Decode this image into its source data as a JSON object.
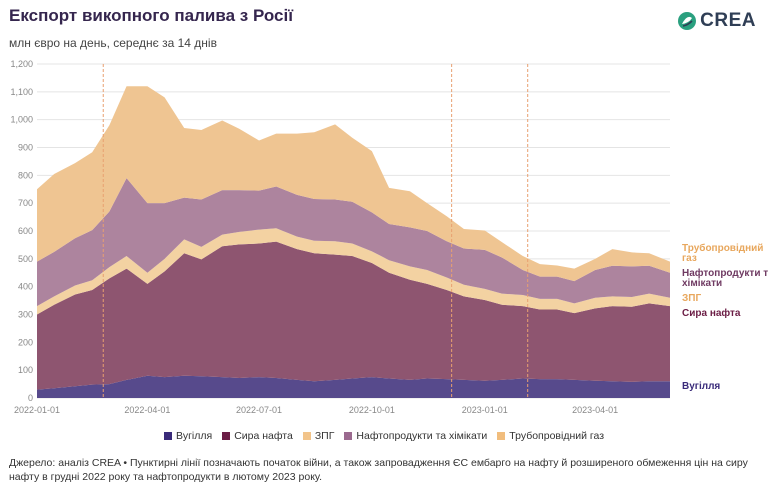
{
  "title": "Експорт викопного палива з Росії",
  "subtitle": "млн євро на день, середнє за 14 днів",
  "logo_text": "CREA",
  "source": "Джерело: аналіз CREA • Пунктирні лінії позначають початок війни, а також запровадження ЄС ембарго на нафту й розширеного обмеження цін на сиру нафту в грудні 2022 року та нафтопродукти в лютому 2023 року.",
  "legend": [
    {
      "label": "Вугілля",
      "color": "#3a2b7a"
    },
    {
      "label": "Сира нафта",
      "color": "#6b1d45"
    },
    {
      "label": "ЗПГ",
      "color": "#f2c48a"
    },
    {
      "label": "Нафтопродукти та хімікати",
      "color": "#9b6a8f"
    },
    {
      "label": "Трубопровідний газ",
      "color": "#f1bd7d"
    }
  ],
  "chart_data": {
    "type": "area",
    "stacked": true,
    "ylabel": "",
    "xlabel": "",
    "ylim": [
      0,
      1200
    ],
    "y_ticks": [
      "0",
      "100",
      "200",
      "300",
      "400",
      "500",
      "600",
      "700",
      "800",
      "900",
      "1,000",
      "1,100",
      "1,200"
    ],
    "x_ticks": [
      "2022-01-01",
      "2022-04-01",
      "2022-07-01",
      "2022-10-01",
      "2023-01-01",
      "2023-04-01"
    ],
    "x_range": [
      "2022-01-01",
      "2023-06-01"
    ],
    "grid": "horizontal",
    "vlines": [
      "2022-02-24",
      "2022-12-05",
      "2023-02-05"
    ],
    "x": [
      "2022-01-01",
      "2022-01-15",
      "2022-02-01",
      "2022-02-15",
      "2022-03-01",
      "2022-03-15",
      "2022-04-01",
      "2022-04-15",
      "2022-05-01",
      "2022-05-15",
      "2022-06-01",
      "2022-06-15",
      "2022-07-01",
      "2022-07-15",
      "2022-08-01",
      "2022-08-15",
      "2022-09-01",
      "2022-09-15",
      "2022-10-01",
      "2022-10-15",
      "2022-11-01",
      "2022-11-15",
      "2022-12-01",
      "2022-12-15",
      "2023-01-01",
      "2023-01-15",
      "2023-02-01",
      "2023-02-15",
      "2023-03-01",
      "2023-03-15",
      "2023-04-01",
      "2023-04-15",
      "2023-05-01",
      "2023-05-15",
      "2023-06-01"
    ],
    "series": [
      {
        "name": "Вугілля",
        "color": "#574a8c",
        "values": [
          30,
          35,
          42,
          48,
          50,
          65,
          80,
          75,
          80,
          78,
          75,
          72,
          75,
          72,
          65,
          60,
          65,
          70,
          75,
          70,
          65,
          70,
          68,
          65,
          62,
          65,
          70,
          68,
          68,
          65,
          62,
          60,
          58,
          60,
          60
        ]
      },
      {
        "name": "Сира нафта",
        "color": "#8e5570",
        "values": [
          270,
          300,
          330,
          340,
          380,
          400,
          330,
          380,
          440,
          420,
          470,
          480,
          480,
          490,
          470,
          460,
          450,
          440,
          410,
          380,
          360,
          340,
          320,
          300,
          290,
          270,
          260,
          250,
          250,
          240,
          260,
          270,
          270,
          280,
          270
        ]
      },
      {
        "name": "ЗПГ",
        "color": "#f3d2a2",
        "values": [
          30,
          30,
          32,
          35,
          40,
          45,
          40,
          45,
          50,
          45,
          42,
          45,
          50,
          48,
          45,
          45,
          48,
          45,
          42,
          45,
          48,
          50,
          45,
          42,
          40,
          40,
          40,
          38,
          38,
          35,
          38,
          35,
          35,
          35,
          30
        ]
      },
      {
        "name": "Нафтопродукти та хімікати",
        "color": "#ad849e",
        "values": [
          160,
          160,
          170,
          180,
          200,
          280,
          250,
          200,
          150,
          170,
          160,
          150,
          140,
          150,
          150,
          150,
          150,
          150,
          140,
          130,
          140,
          140,
          130,
          130,
          140,
          130,
          90,
          80,
          80,
          80,
          100,
          110,
          110,
          100,
          90
        ]
      },
      {
        "name": "Трубопровідний газ",
        "color": "#efc592",
        "values": [
          260,
          280,
          270,
          280,
          310,
          330,
          420,
          380,
          250,
          250,
          250,
          220,
          180,
          190,
          220,
          240,
          270,
          230,
          220,
          130,
          130,
          100,
          90,
          70,
          70,
          55,
          50,
          45,
          40,
          45,
          40,
          60,
          50,
          45,
          40
        ]
      }
    ],
    "end_labels": [
      {
        "label": "Трубопровідний газ",
        "color": "#e8a75d"
      },
      {
        "label": "Нафтопродукти та хімікати",
        "color": "#6f3a62"
      },
      {
        "label": "ЗПГ",
        "color": "#e8a75d"
      },
      {
        "label": "Сира нафта",
        "color": "#6b1d45"
      },
      {
        "label": "Вугілля",
        "color": "#3a2b7a"
      }
    ]
  }
}
